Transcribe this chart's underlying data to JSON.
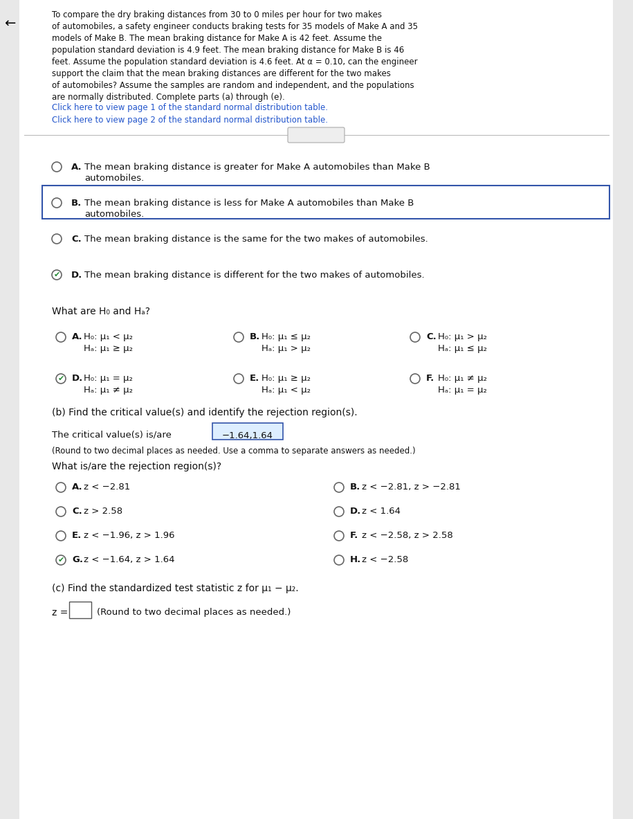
{
  "bg_color": "#e8e8e8",
  "page_bg": "#ffffff",
  "intro_text": "To compare the dry braking distances from 30 to 0 miles per hour for two makes\nof automobiles, a safety engineer conducts braking tests for 35 models of Make A and 35\nmodels of Make B. The mean braking distance for Make A is 42 feet. Assume the\npopulation standard deviation is 4.9 feet. The mean braking distance for Make B is 46\nfeet. Assume the population standard deviation is 4.6 feet. At α = 0.10, can the engineer\nsupport the claim that the mean braking distances are different for the two makes\nof automobiles? Assume the samples are random and independent, and the populations\nare normally distributed. Complete parts (a) through (e).",
  "link1": "Click here to view page 1 of the standard normal distribution table.",
  "link2": "Click here to view page 2 of the standard normal distribution table.",
  "choices_a": [
    {
      "id": "A",
      "text": "The mean braking distance is greater for Make A automobiles than Make B\nautomobiles.",
      "selected": false,
      "boxed": false
    },
    {
      "id": "B",
      "text": "The mean braking distance is less for Make A automobiles than Make B\nautomobiles.",
      "selected": false,
      "boxed": true
    },
    {
      "id": "C",
      "text": "The mean braking distance is the same for the two makes of automobiles.",
      "selected": false,
      "boxed": false
    },
    {
      "id": "D",
      "text": "The mean braking distance is different for the two makes of automobiles.",
      "selected": true,
      "boxed": false
    }
  ],
  "h0_ha_label": "What are H₀ and Hₐ?",
  "h0_ha_choices": [
    {
      "id": "A",
      "col": 0,
      "row": 0,
      "h0": "H₀: μ₁ < μ₂",
      "ha": "Hₐ: μ₁ ≥ μ₂",
      "selected": false
    },
    {
      "id": "B",
      "col": 1,
      "row": 0,
      "h0": "H₀: μ₁ ≤ μ₂",
      "ha": "Hₐ: μ₁ > μ₂",
      "selected": false
    },
    {
      "id": "C",
      "col": 2,
      "row": 0,
      "h0": "H₀: μ₁ > μ₂",
      "ha": "Hₐ: μ₁ ≤ μ₂",
      "selected": false
    },
    {
      "id": "D",
      "col": 0,
      "row": 1,
      "h0": "H₀: μ₁ = μ₂",
      "ha": "Hₐ: μ₁ ≠ μ₂",
      "selected": true
    },
    {
      "id": "E",
      "col": 1,
      "row": 1,
      "h0": "H₀: μ₁ ≥ μ₂",
      "ha": "Hₐ: μ₁ < μ₂",
      "selected": false
    },
    {
      "id": "F",
      "col": 2,
      "row": 1,
      "h0": "H₀: μ₁ ≠ μ₂",
      "ha": "Hₐ: μ₁ = μ₂",
      "selected": false
    }
  ],
  "part_b_label": "(b) Find the critical value(s) and identify the rejection region(s).",
  "critical_value_text": "The critical value(s) is/are",
  "critical_value": "−1.64,1.64",
  "round_note": "(Round to two decimal places as needed. Use a comma to separate answers as needed.)",
  "rejection_label": "What is/are the rejection region(s)?",
  "rejection_choices": [
    {
      "id": "A",
      "col": 0,
      "row": 0,
      "text": "z < −2.81",
      "selected": false
    },
    {
      "id": "B",
      "col": 1,
      "row": 0,
      "text": "z < −2.81, z > −2.81",
      "selected": false
    },
    {
      "id": "C",
      "col": 0,
      "row": 1,
      "text": "z > 2.58",
      "selected": false
    },
    {
      "id": "D",
      "col": 1,
      "row": 1,
      "text": "z < 1.64",
      "selected": false
    },
    {
      "id": "E",
      "col": 0,
      "row": 2,
      "text": "z < −1.96, z > 1.96",
      "selected": false
    },
    {
      "id": "F",
      "col": 1,
      "row": 2,
      "text": "z < −2.58, z > 2.58",
      "selected": false
    },
    {
      "id": "G",
      "col": 0,
      "row": 3,
      "text": "z < −1.64, z > 1.64",
      "selected": true
    },
    {
      "id": "H",
      "col": 1,
      "row": 3,
      "text": "z < −2.58",
      "selected": false
    }
  ],
  "part_c_label": "(c) Find the standardized test statistic z for μ₁ − μ₂.",
  "part_c_round": "(Round to two decimal places as needed.)"
}
